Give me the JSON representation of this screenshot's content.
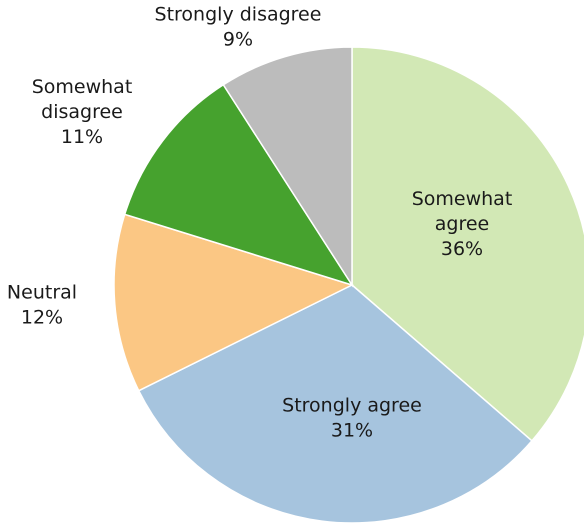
{
  "chart_data": {
    "type": "pie",
    "title": "",
    "start_angle_deg": 0,
    "direction": "clockwise",
    "slices": [
      {
        "label": "Somewhat agree",
        "label_lines": [
          "Somewhat",
          "agree"
        ],
        "value": 36,
        "value_label": "36%",
        "color": "#d2e8b5"
      },
      {
        "label": "Strongly agree",
        "label_lines": [
          "Strongly agree"
        ],
        "value": 31,
        "value_label": "31%",
        "color": "#a6c4de"
      },
      {
        "label": "Neutral",
        "label_lines": [
          "Neutral"
        ],
        "value": 12,
        "value_label": "12%",
        "color": "#fbc784"
      },
      {
        "label": "Somewhat disagree",
        "label_lines": [
          "Somewhat",
          "disagree"
        ],
        "value": 11,
        "value_label": "11%",
        "color": "#46a22e"
      },
      {
        "label": "Strongly disagree",
        "label_lines": [
          "Strongly disagree"
        ],
        "value": 9,
        "value_label": "9%",
        "color": "#bcbcbc"
      }
    ],
    "data_labels": true,
    "legend": "none"
  }
}
